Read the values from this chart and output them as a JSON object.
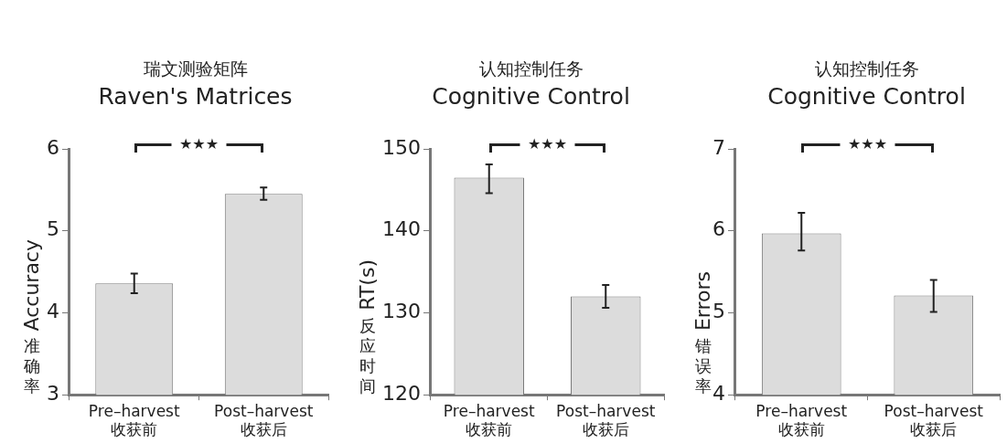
{
  "chart_data": [
    {
      "type": "bar",
      "title": "瑞文测验矩阵\nRaven's Matrices",
      "ylabel": "Accuracy\n准确率",
      "categories": [
        "Pre–harvest\n收获前",
        "Post–harvest\n收获后"
      ],
      "values": [
        4.36,
        5.45
      ],
      "errors": [
        [
          4.24,
          4.48
        ],
        [
          5.38,
          5.53
        ]
      ],
      "color": "#dcdcdc",
      "ylim": [
        3,
        6
      ],
      "yticks": [
        3,
        4,
        5,
        6
      ],
      "grid": false,
      "legend": false,
      "annotations": [
        "★★★"
      ]
    },
    {
      "type": "bar",
      "title": "认知控制任务\nCognitive Control",
      "ylabel": "RT(s)\n反应时间",
      "categories": [
        "Pre–harvest\n收获前",
        "Post–harvest\n收获后"
      ],
      "values": [
        146.5,
        132.0
      ],
      "errors": [
        [
          144.6,
          148.1
        ],
        [
          130.6,
          133.4
        ]
      ],
      "color": "#dcdcdc",
      "ylim": [
        120,
        150
      ],
      "yticks": [
        120,
        130,
        140,
        150
      ],
      "grid": false,
      "legend": false,
      "annotations": [
        "★★★"
      ]
    },
    {
      "type": "bar",
      "title": "认知控制任务\nCognitive Control",
      "ylabel": "Errors\n错误率",
      "categories": [
        "Pre–harvest\n收获前",
        "Post–harvest\n收获后"
      ],
      "values": [
        5.97,
        5.21
      ],
      "errors": [
        [
          5.76,
          6.22
        ],
        [
          5.01,
          5.4
        ]
      ],
      "color": "#dcdcdc",
      "ylim": [
        4,
        7
      ],
      "yticks": [
        4,
        5,
        6,
        7
      ],
      "grid": false,
      "legend": false,
      "annotations": [
        "★★★"
      ]
    }
  ]
}
